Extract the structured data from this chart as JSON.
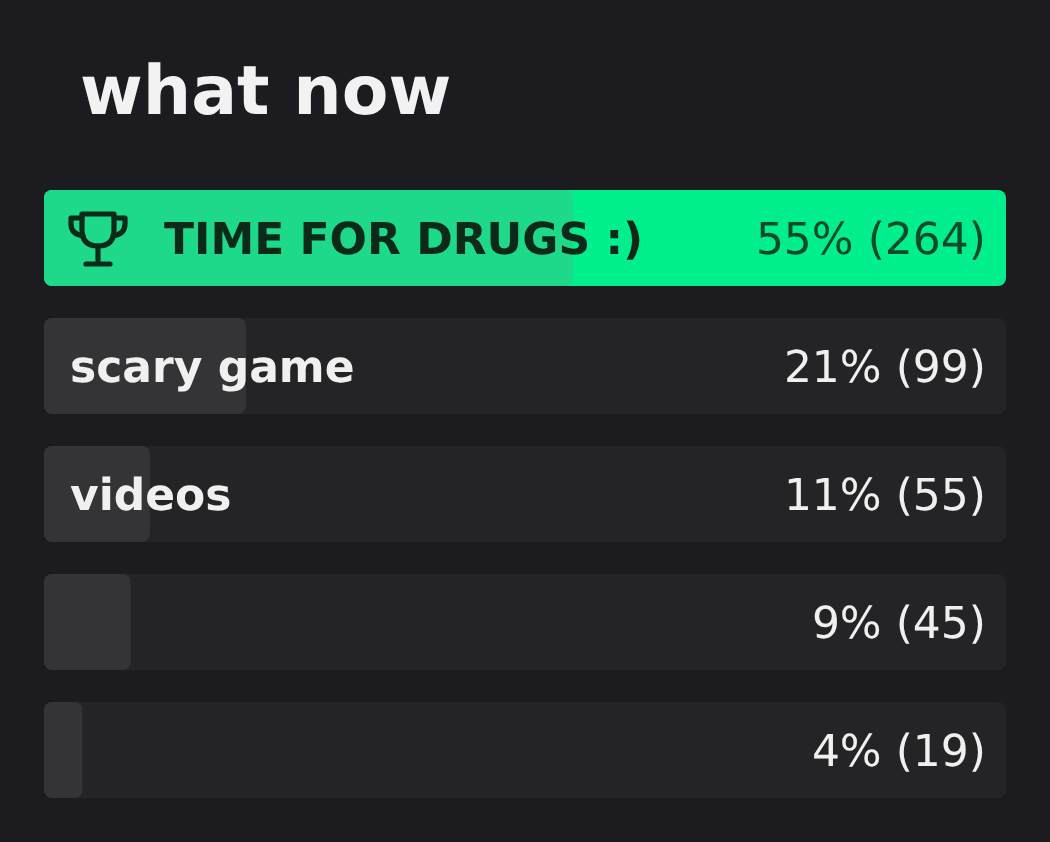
{
  "chart_data": {
    "type": "bar",
    "orientation": "horizontal",
    "title": "what now",
    "categories": [
      "TIME FOR DRUGS :)",
      "scary game",
      "videos",
      null,
      null
    ],
    "values": [
      55,
      21,
      11,
      9,
      4
    ],
    "colors": [
      "#1ed98a",
      "#343436",
      "#343436",
      "#343436",
      "#343436"
    ],
    "value_labels": [
      "55% (264)",
      "21% (99)",
      "11% (55)",
      "9% (45)",
      "4% (19)"
    ],
    "bands": [
      {
        "axis": "y",
        "from": "TIME FOR DRUGS :)",
        "to": "TIME FOR DRUGS :)",
        "color": "#00ef8c"
      }
    ],
    "xlim": [
      0,
      100
    ],
    "tick_labels": false
  }
}
